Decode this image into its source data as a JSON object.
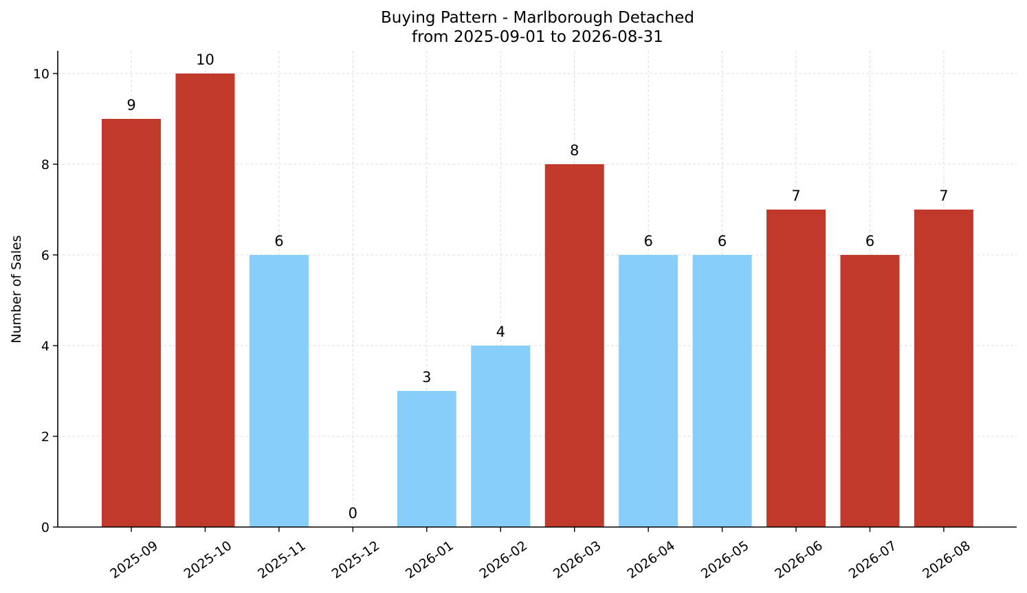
{
  "chart_data": {
    "type": "bar",
    "title": "Buying Pattern - Marlborough Detached",
    "subtitle": "from 2025-09-01 to 2026-08-31",
    "xlabel": "",
    "ylabel": "Number of Sales",
    "categories": [
      "2025-09",
      "2025-10",
      "2025-11",
      "2025-12",
      "2026-01",
      "2026-02",
      "2026-03",
      "2026-04",
      "2026-05",
      "2026-06",
      "2026-07",
      "2026-08"
    ],
    "values": [
      9,
      10,
      6,
      0,
      3,
      4,
      8,
      6,
      6,
      7,
      6,
      7
    ],
    "bar_colors": [
      "#c0392b",
      "#c0392b",
      "#87cefa",
      "#87cefa",
      "#87cefa",
      "#87cefa",
      "#c0392b",
      "#87cefa",
      "#87cefa",
      "#c0392b",
      "#c0392b",
      "#c0392b"
    ],
    "ylim": [
      0,
      10.5
    ],
    "yticks": [
      0,
      2,
      4,
      6,
      8,
      10
    ],
    "grid": true,
    "legend": "none"
  }
}
